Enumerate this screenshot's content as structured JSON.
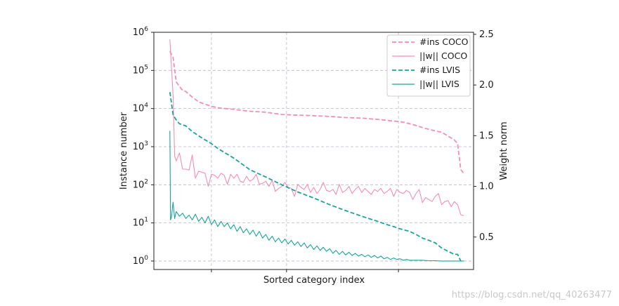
{
  "chart_data": {
    "type": "line",
    "xlabel": "Sorted category index",
    "ylabel_left": "Instance number",
    "ylabel_right": "Weight norm",
    "y_left_scale": "log",
    "y_left_range": [
      0.6,
      1000000
    ],
    "y_left_ticks": [
      {
        "value": 1,
        "base": "10",
        "exp": "0"
      },
      {
        "value": 10,
        "base": "10",
        "exp": "1"
      },
      {
        "value": 100,
        "base": "10",
        "exp": "2"
      },
      {
        "value": 1000,
        "base": "10",
        "exp": "3"
      },
      {
        "value": 10000,
        "base": "10",
        "exp": "4"
      },
      {
        "value": 100000,
        "base": "10",
        "exp": "5"
      },
      {
        "value": 1000000,
        "base": "10",
        "exp": "6"
      }
    ],
    "y_right_range": [
      0.18,
      2.52
    ],
    "y_right_ticks": [
      "0.5",
      "1.0",
      "1.5",
      "2.0",
      "2.5"
    ],
    "x_range": [
      0,
      1
    ],
    "x_gridlines": [
      0.18,
      0.415,
      0.765
    ],
    "legend_position": "top-right",
    "grid": true,
    "series": [
      {
        "name": "#ins COCO",
        "axis": "left",
        "style": "dashed",
        "color": "#f48fb1",
        "x": [
          0.05,
          0.06,
          0.07,
          0.08,
          0.09,
          0.1,
          0.12,
          0.14,
          0.16,
          0.18,
          0.2,
          0.25,
          0.3,
          0.35,
          0.4,
          0.45,
          0.5,
          0.55,
          0.6,
          0.65,
          0.7,
          0.75,
          0.78,
          0.8,
          0.82,
          0.85,
          0.88,
          0.9,
          0.92,
          0.94,
          0.95,
          0.96,
          0.97
        ],
        "y": [
          320000,
          220000,
          50000,
          38000,
          30000,
          28000,
          20000,
          15000,
          13000,
          11500,
          10500,
          9500,
          8500,
          8000,
          7000,
          6700,
          6500,
          6200,
          5800,
          5600,
          5200,
          4700,
          4400,
          4000,
          3600,
          3000,
          2600,
          2400,
          1900,
          1500,
          1200,
          250,
          200
        ]
      },
      {
        "name": "||w|| COCO",
        "axis": "right",
        "style": "solid",
        "color": "#f48fb1",
        "x": [
          0.05,
          0.06,
          0.065,
          0.07,
          0.08,
          0.09,
          0.1,
          0.11,
          0.12,
          0.13,
          0.14,
          0.15,
          0.16,
          0.17,
          0.18,
          0.19,
          0.2,
          0.21,
          0.22,
          0.23,
          0.24,
          0.25,
          0.26,
          0.27,
          0.28,
          0.29,
          0.3,
          0.31,
          0.32,
          0.33,
          0.34,
          0.35,
          0.36,
          0.37,
          0.38,
          0.39,
          0.4,
          0.41,
          0.42,
          0.43,
          0.44,
          0.45,
          0.46,
          0.47,
          0.48,
          0.49,
          0.5,
          0.51,
          0.52,
          0.53,
          0.54,
          0.55,
          0.56,
          0.57,
          0.58,
          0.59,
          0.6,
          0.61,
          0.62,
          0.63,
          0.64,
          0.65,
          0.66,
          0.67,
          0.68,
          0.69,
          0.7,
          0.71,
          0.72,
          0.73,
          0.74,
          0.75,
          0.76,
          0.77,
          0.78,
          0.79,
          0.8,
          0.81,
          0.82,
          0.83,
          0.84,
          0.85,
          0.86,
          0.87,
          0.88,
          0.89,
          0.9,
          0.91,
          0.92,
          0.93,
          0.94,
          0.95,
          0.96,
          0.97
        ],
        "y": [
          2.45,
          1.9,
          1.3,
          1.25,
          1.33,
          1.17,
          1.17,
          1.16,
          1.31,
          1.08,
          1.15,
          1.14,
          1.13,
          1.0,
          1.12,
          1.11,
          1.08,
          1.13,
          1.11,
          1.02,
          1.12,
          1.08,
          1.12,
          1.05,
          1.04,
          1.1,
          1.05,
          1.07,
          1.12,
          1.02,
          1.03,
          1.05,
          1.0,
          1.06,
          0.95,
          0.98,
          1.0,
          1.04,
          0.99,
          0.98,
          0.9,
          1.02,
          0.99,
          0.97,
          1.02,
          0.94,
          0.99,
          0.93,
          0.97,
          1.04,
          0.96,
          0.95,
          0.97,
          0.92,
          1.02,
          0.94,
          0.96,
          1.0,
          0.93,
          0.97,
          1.0,
          0.94,
          0.98,
          0.95,
          0.92,
          0.97,
          0.95,
          0.98,
          0.93,
          0.95,
          0.98,
          0.9,
          0.97,
          0.94,
          0.93,
          0.96,
          0.94,
          0.87,
          0.93,
          0.97,
          0.84,
          0.89,
          0.87,
          0.85,
          0.9,
          0.93,
          0.82,
          0.85,
          0.86,
          0.8,
          0.85,
          0.82,
          0.72,
          0.71
        ]
      },
      {
        "name": "#ins LVIS",
        "axis": "left",
        "style": "dashed",
        "color": "#1ba39c",
        "x": [
          0.05,
          0.06,
          0.07,
          0.08,
          0.1,
          0.12,
          0.15,
          0.18,
          0.2,
          0.25,
          0.3,
          0.35,
          0.4,
          0.45,
          0.5,
          0.55,
          0.6,
          0.65,
          0.7,
          0.73,
          0.75,
          0.77,
          0.8,
          0.82,
          0.84,
          0.86,
          0.88,
          0.9,
          0.92,
          0.94,
          0.95,
          0.96
        ],
        "y": [
          27000,
          7000,
          5000,
          4000,
          3500,
          2500,
          1700,
          1200,
          900,
          500,
          250,
          160,
          100,
          65,
          45,
          30,
          21,
          15,
          11,
          9,
          8,
          7,
          6,
          5,
          4,
          3.5,
          3,
          2.2,
          1.8,
          1.5,
          1.5,
          1.0
        ]
      },
      {
        "name": "||w|| LVIS",
        "axis": "left",
        "style": "solid",
        "color": "#1ba39c",
        "x": [
          0.05,
          0.052,
          0.055,
          0.06,
          0.065,
          0.07,
          0.08,
          0.09,
          0.1,
          0.11,
          0.12,
          0.13,
          0.14,
          0.15,
          0.16,
          0.17,
          0.18,
          0.19,
          0.2,
          0.21,
          0.22,
          0.23,
          0.24,
          0.25,
          0.26,
          0.27,
          0.28,
          0.29,
          0.3,
          0.31,
          0.32,
          0.33,
          0.34,
          0.35,
          0.36,
          0.37,
          0.38,
          0.39,
          0.4,
          0.41,
          0.42,
          0.43,
          0.44,
          0.45,
          0.46,
          0.47,
          0.48,
          0.49,
          0.5,
          0.51,
          0.52,
          0.53,
          0.54,
          0.55,
          0.56,
          0.57,
          0.58,
          0.59,
          0.6,
          0.61,
          0.62,
          0.63,
          0.64,
          0.65,
          0.66,
          0.67,
          0.68,
          0.69,
          0.7,
          0.71,
          0.72,
          0.73,
          0.74,
          0.75,
          0.76,
          0.77,
          0.78,
          0.79,
          0.8,
          0.82,
          0.84,
          0.86,
          0.88,
          0.9,
          0.92,
          0.94,
          0.96,
          0.97
        ],
        "y": [
          2600,
          12,
          14,
          35,
          13,
          20,
          15,
          18,
          13,
          16,
          12,
          17,
          11,
          14,
          10,
          15,
          9,
          12,
          8,
          11,
          8,
          10,
          7,
          9,
          6,
          8,
          5.5,
          7,
          5,
          6.5,
          4.5,
          6,
          4,
          5,
          3.5,
          4.5,
          3.2,
          4,
          3,
          3.8,
          2.8,
          3.5,
          2.6,
          3.2,
          2.4,
          3,
          2.2,
          2.7,
          2,
          2.5,
          1.9,
          2.3,
          1.8,
          2.1,
          1.6,
          1.9,
          1.5,
          1.8,
          1.45,
          1.7,
          1.4,
          1.6,
          1.35,
          1.5,
          1.3,
          1.45,
          1.25,
          1.4,
          1.2,
          1.35,
          1.15,
          1.25,
          1.1,
          1.2,
          1.1,
          1.15,
          1.05,
          1.1,
          1.05,
          1.05,
          1.05,
          1.02,
          1.02,
          1.0,
          1.0,
          1.0,
          1.0,
          1.0
        ]
      }
    ]
  },
  "watermark": "https://blog.csdn.net/qq_40263477"
}
